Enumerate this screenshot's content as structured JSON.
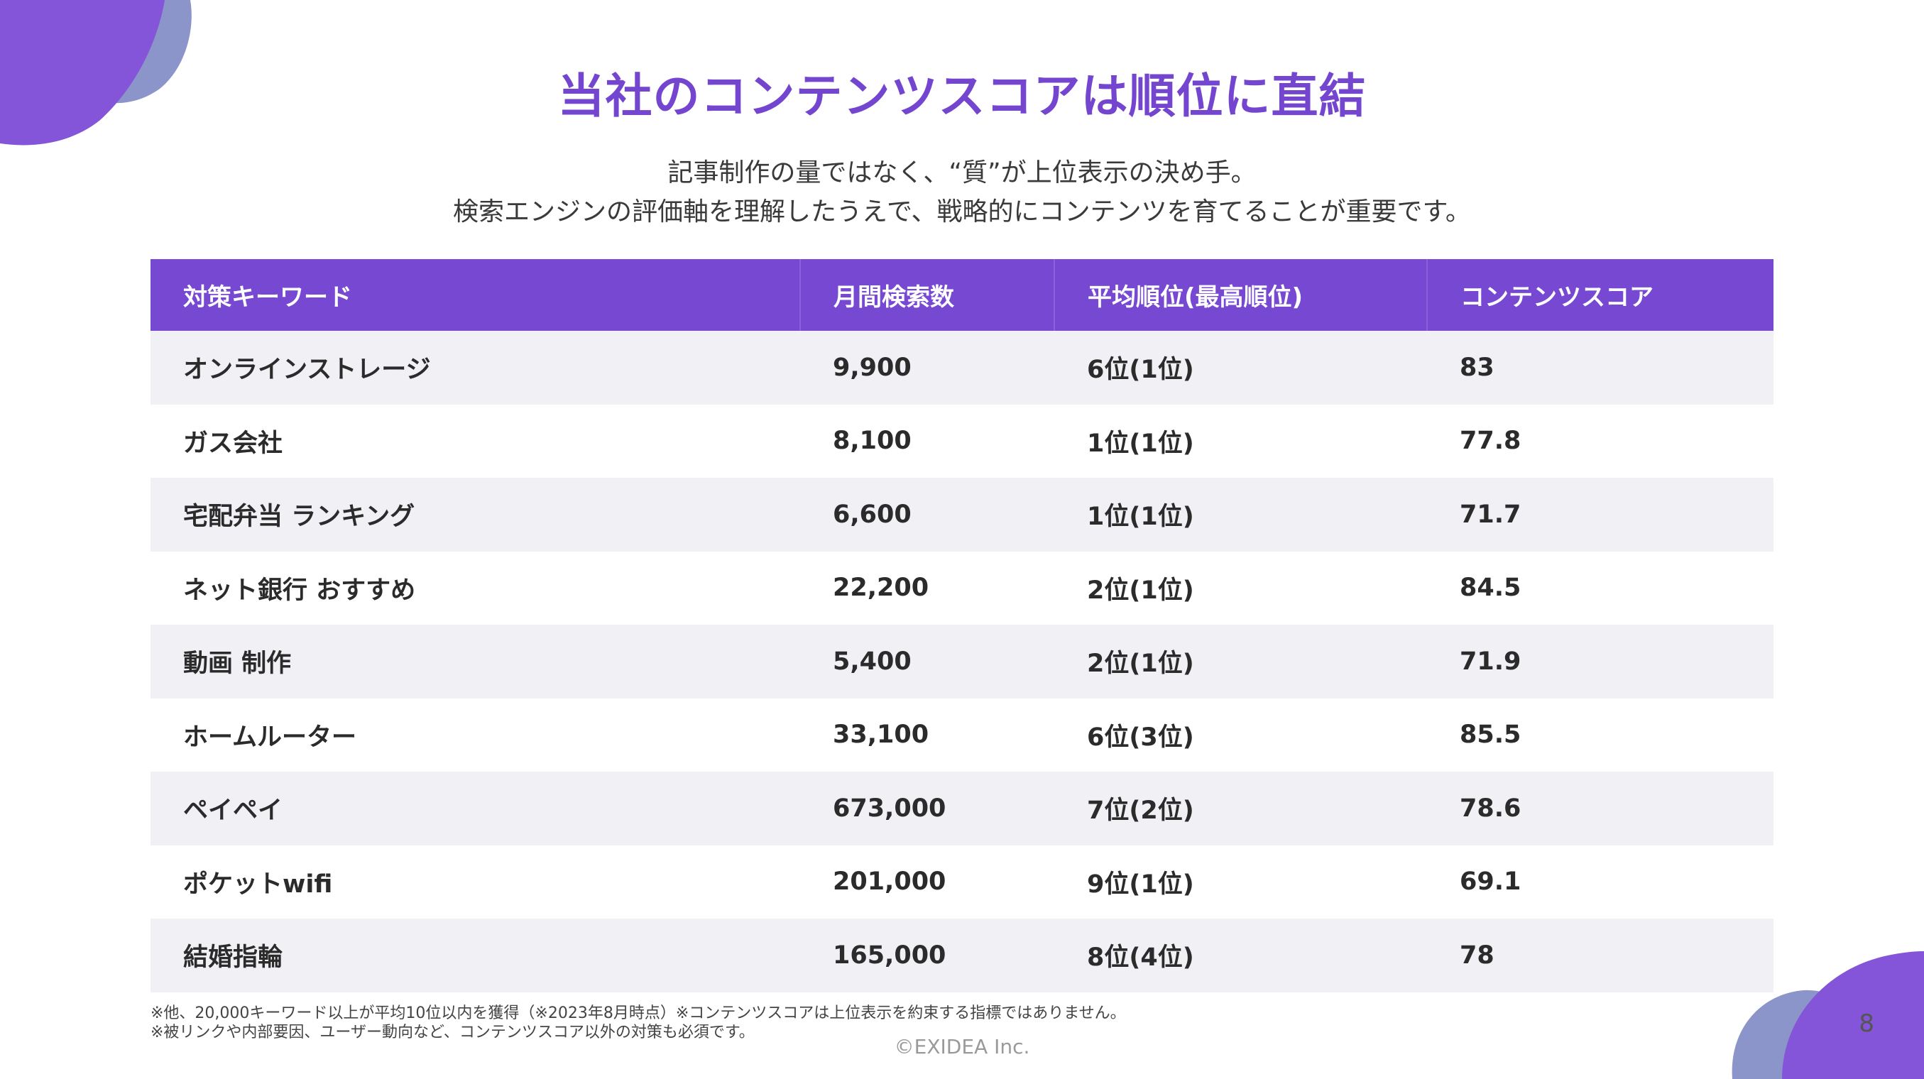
{
  "slide": {
    "title": "当社のコンテンツスコアは順位に直結",
    "subtitle_lines": [
      "記事制作の量ではなく、“質”が上位表示の決め手。",
      "検索エンジンの評価軸を理解したうえで、戦略的にコンテンツを育てることが重要です。"
    ],
    "notes": [
      "※他、20,000キーワード以上が平均10位以内を獲得（※2023年8月時点）※コンテンツスコアは上位表示を約束する指標ではありません。",
      "※被リンクや内部要因、ユーザー動向など、コンテンツスコア以外の対策も必須です。"
    ],
    "copyright": "©EXIDEA Inc.",
    "page_number": "8",
    "accent_color": "#7748d1",
    "blob_colors": [
      "#8455d8",
      "#8b95c9"
    ]
  },
  "table": {
    "headers": [
      "対策キーワード",
      "月間検索数",
      "平均順位(最高順位)",
      "コンテンツスコア"
    ],
    "rows": [
      [
        "オンラインストレージ",
        "9,900",
        "6位(1位)",
        "83"
      ],
      [
        "ガス会社",
        "8,100",
        "1位(1位)",
        "77.8"
      ],
      [
        "宅配弁当 ランキング",
        "6,600",
        "1位(1位)",
        "71.7"
      ],
      [
        "ネット銀行 おすすめ",
        "22,200",
        "2位(1位)",
        "84.5"
      ],
      [
        "動画 制作",
        "5,400",
        "2位(1位)",
        "71.9"
      ],
      [
        "ホームルーター",
        "33,100",
        "6位(3位)",
        "85.5"
      ],
      [
        "ペイペイ",
        "673,000",
        "7位(2位)",
        "78.6"
      ],
      [
        "ポケットwifi",
        "201,000",
        "9位(1位)",
        "69.1"
      ],
      [
        "結婚指輪",
        "165,000",
        "8位(4位)",
        "78"
      ]
    ]
  }
}
